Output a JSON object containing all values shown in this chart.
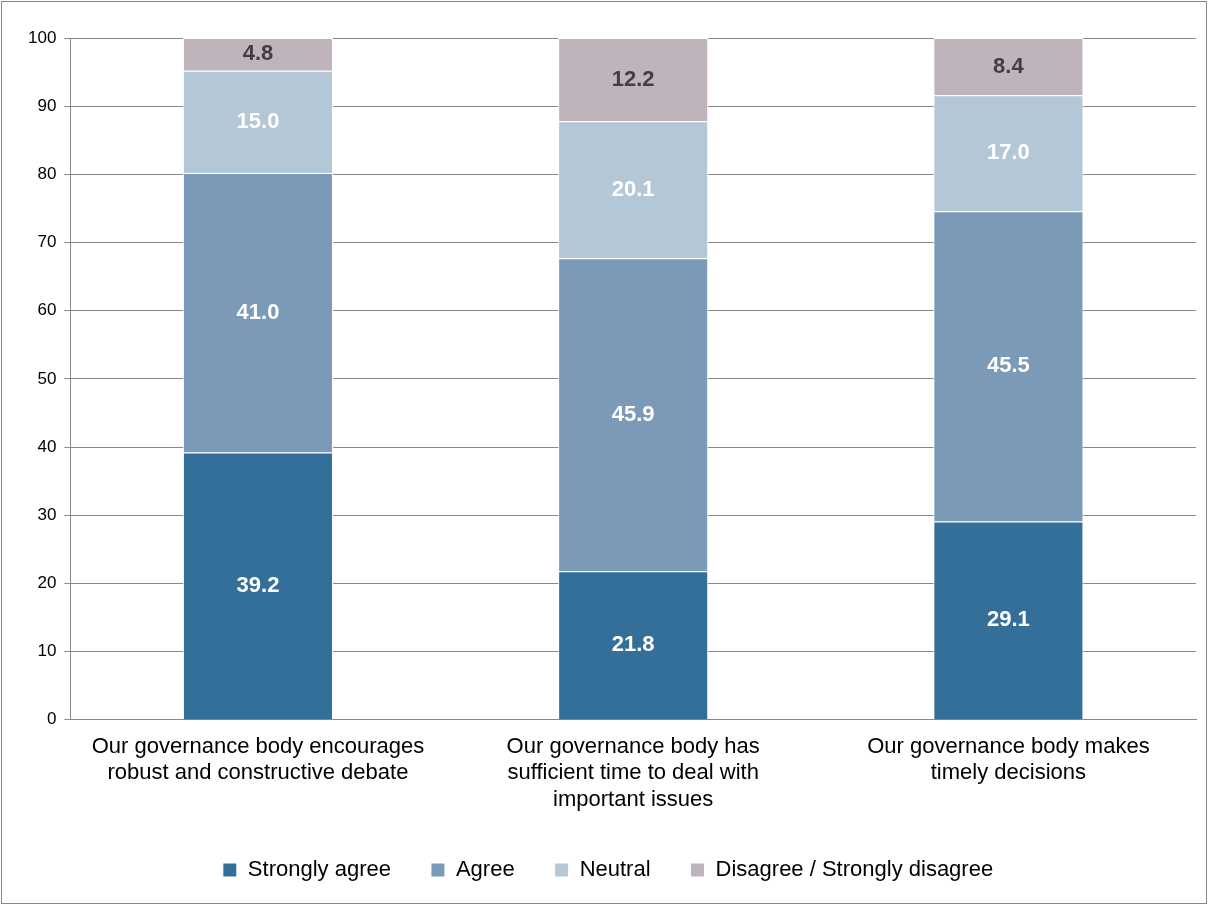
{
  "chart_data": {
    "type": "bar",
    "stacked": true,
    "categories": [
      "Our governance body encourages robust and constructive debate",
      "Our governance body has sufficient time to deal with important issues",
      "Our governance body makes timely decisions"
    ],
    "series": [
      {
        "name": "Strongly agree",
        "color": "#336f99",
        "values": [
          39.2,
          21.8,
          29.1
        ],
        "value_labels": [
          "39.2",
          "21.8",
          "29.1"
        ]
      },
      {
        "name": "Agree",
        "color": "#7b9ab8",
        "values": [
          41.0,
          45.9,
          45.5
        ],
        "value_labels": [
          "41.0",
          "45.9",
          "45.5"
        ]
      },
      {
        "name": "Neutral",
        "color": "#b4c7d7",
        "values": [
          15.0,
          20.1,
          17.0
        ],
        "value_labels": [
          "15.0",
          "20.1",
          "17.0"
        ]
      },
      {
        "name": "Disagree / Strongly disagree",
        "color": "#c0b4bc",
        "values": [
          4.8,
          12.2,
          8.4
        ],
        "value_labels": [
          "4.8",
          "12.2",
          "8.4"
        ]
      }
    ],
    "ylim": [
      0,
      100
    ],
    "yticks": [
      0,
      10,
      20,
      30,
      40,
      50,
      60,
      70,
      80,
      90,
      100
    ],
    "grid": "y",
    "legend": "bottom"
  }
}
